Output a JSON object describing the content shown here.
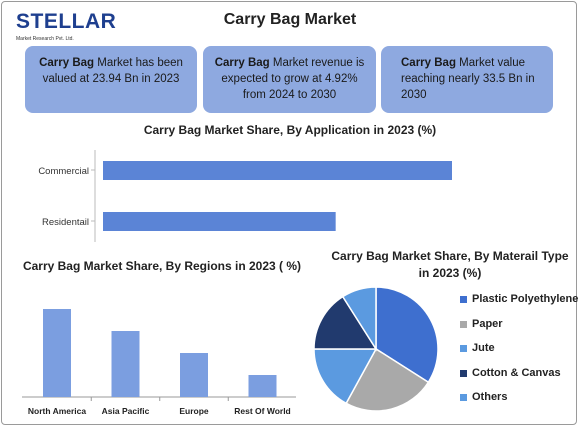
{
  "header": {
    "logo_text": "STELLAR",
    "logo_subtext": "Market Research Pvt. Ltd.",
    "title": "Carry Bag Market"
  },
  "highlights": [
    {
      "bold": "Carry Bag",
      "text": " Market has been valued at 23.94 Bn in 2023"
    },
    {
      "bold": "Carry Bag",
      "text": " Market revenue is expected to grow at 4.92% from 2024 to 2030"
    },
    {
      "bold": "Carry Bag",
      "text": " Market value reaching nearly 33.5 Bn in 2030"
    }
  ],
  "colors": {
    "bar": "#5b84d6",
    "region_bar": "#7b9ee0",
    "box": "#8ea9e0"
  },
  "chart_data": [
    {
      "type": "bar",
      "orientation": "horizontal",
      "title": "Carry Bag Market Share, By Application in 2023 (%)",
      "categories": [
        "Commercial",
        "Residentail"
      ],
      "values": [
        69,
        46
      ],
      "xlim": [
        0,
        70
      ]
    },
    {
      "type": "bar",
      "orientation": "vertical",
      "title": "Carry Bag Market Share, By Regions in 2023 ( %)",
      "categories": [
        "North America",
        "Asia Pacific",
        "Europe",
        "Rest Of World"
      ],
      "values": [
        40,
        30,
        20,
        10
      ],
      "ylim": [
        0,
        45
      ]
    },
    {
      "type": "pie",
      "title": "Carry Bag Market Share, By Materail Type in 2023 (%)",
      "labels": [
        "Plastic Polyethylene",
        "Paper",
        "Jute",
        "Cotton & Canvas",
        "Others"
      ],
      "values": [
        34,
        24,
        17,
        16,
        9
      ],
      "colors": [
        "#3e6fcf",
        "#a9a9a9",
        "#5b9ae0",
        "#213a6e",
        "#5b9ae0"
      ],
      "legend": "right"
    }
  ]
}
